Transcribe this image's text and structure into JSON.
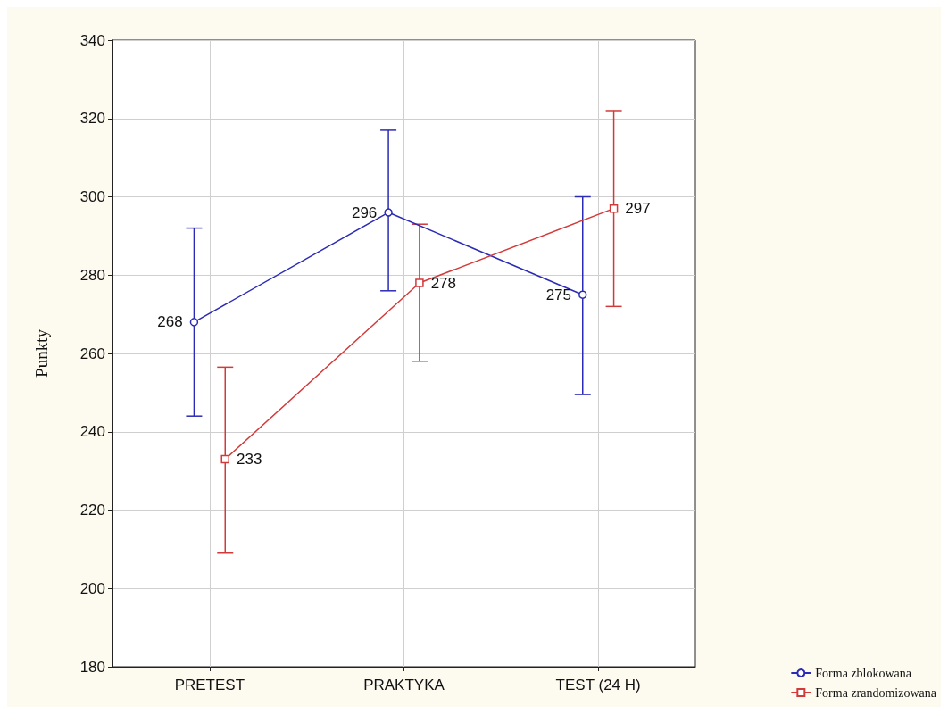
{
  "chart_data": {
    "type": "line",
    "ylabel": "Punkty",
    "categories": [
      "PRETEST",
      "PRAKTYKA",
      "TEST (24 H)"
    ],
    "series": [
      {
        "name": "Forma zblokowana",
        "color": "#2b2bb5",
        "marker": "circle",
        "values": [
          268,
          296,
          275
        ],
        "errors": [
          [
            244,
            292
          ],
          [
            276,
            317
          ],
          [
            249.5,
            300
          ]
        ]
      },
      {
        "name": "Forma zrandomizowana",
        "color": "#d23a3a",
        "marker": "square",
        "values": [
          233,
          278,
          297
        ],
        "errors": [
          [
            209,
            256.5
          ],
          [
            258,
            293
          ],
          [
            272,
            322
          ]
        ]
      }
    ],
    "ylim": [
      180,
      340
    ],
    "yticks": [
      180,
      200,
      220,
      240,
      260,
      280,
      300,
      320,
      340
    ],
    "grid": true,
    "legend": "bottom right",
    "data_labels": true
  }
}
